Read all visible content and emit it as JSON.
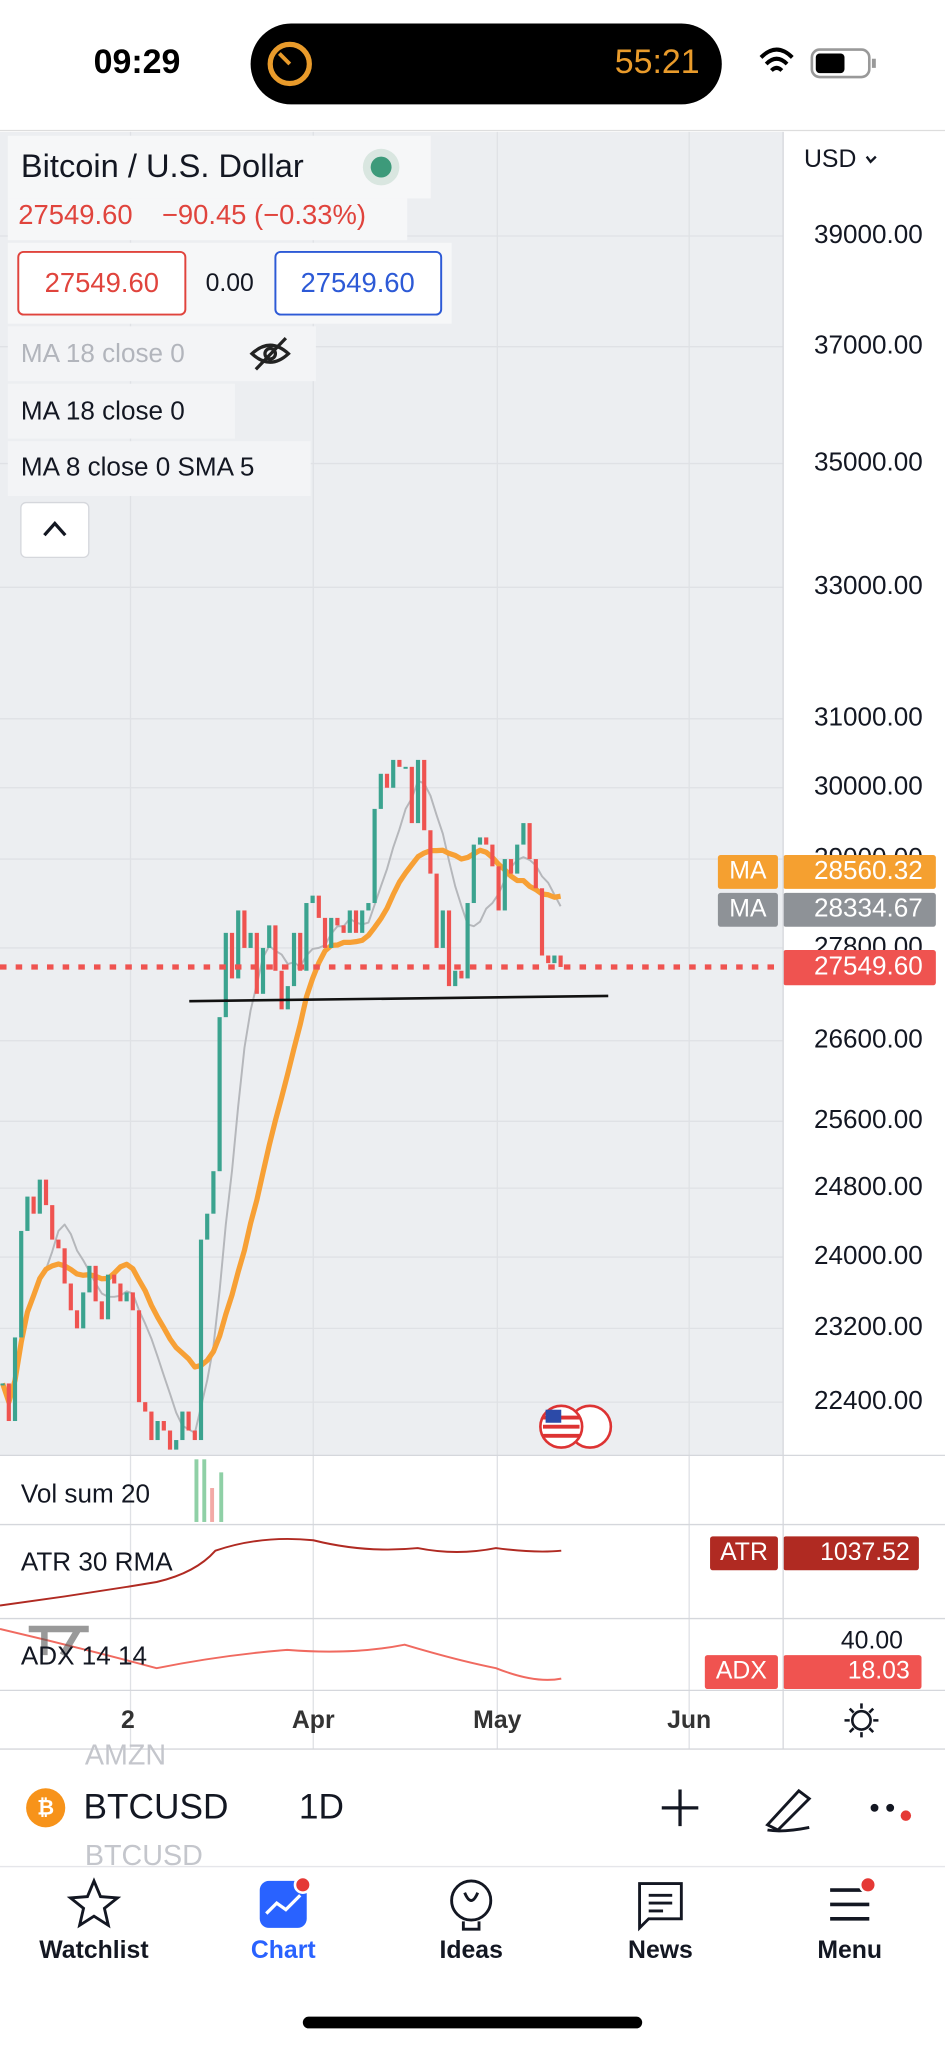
{
  "status_bar": {
    "time": "09:29",
    "timer": "55:21"
  },
  "header": {
    "symbol_title": "Bitcoin / U.S. Dollar",
    "price": "27549.60",
    "change": "−90.45 (−0.33%)",
    "bid": "27549.60",
    "spread": "0.00",
    "ask": "27549.60"
  },
  "indicators": [
    "MA 18 close 0",
    "MA 18 close 0",
    "MA 8 close 0 SMA 5"
  ],
  "chart_data": {
    "type": "candlestick",
    "currency": "USD",
    "log_scale": true,
    "close": [
      22600,
      22200,
      23100,
      24300,
      24700,
      24500,
      24900,
      24600,
      24200,
      24100,
      23700,
      23400,
      23200,
      23600,
      23900,
      23500,
      23300,
      23800,
      23700,
      23500,
      23600,
      23400,
      22400,
      22300,
      22000,
      22200,
      22100,
      21900,
      22000,
      22300,
      22100,
      22000,
      24200,
      24500,
      25000,
      26900,
      28000,
      27400,
      28300,
      27800,
      28000,
      27200,
      27800,
      28100,
      27500,
      27000,
      27300,
      28000,
      27500,
      28400,
      28500,
      28200,
      27800,
      28200,
      28100,
      28000,
      28300,
      28000,
      28300,
      28400,
      29700,
      30200,
      30000,
      30400,
      30300,
      30300,
      29500,
      30400,
      29400,
      28800,
      27800,
      28300,
      27300,
      27500,
      27400,
      28400,
      29200,
      29300,
      29200,
      28900,
      28300,
      29000,
      28800,
      29200,
      29500,
      29000,
      28600,
      27700,
      27600,
      27700,
      27549.6
    ],
    "up_color": "#3ba38f",
    "down_color": "#ef5350",
    "ylim": [
      21840,
      40980
    ],
    "yticks": [
      {
        "value": 39000,
        "label": "39000.00"
      },
      {
        "value": 37000,
        "label": "37000.00"
      },
      {
        "value": 35000,
        "label": "35000.00"
      },
      {
        "value": 33000,
        "label": "33000.00"
      },
      {
        "value": 31000,
        "label": "31000.00"
      },
      {
        "value": 30000,
        "label": "30000.00"
      },
      {
        "value": 29000,
        "label": "29000.00"
      },
      {
        "value": 27800,
        "label": "27800.00"
      },
      {
        "value": 26600,
        "label": "26600.00"
      },
      {
        "value": 25600,
        "label": "25600.00"
      },
      {
        "value": 24800,
        "label": "24800.00"
      },
      {
        "value": 24000,
        "label": "24000.00"
      },
      {
        "value": 23200,
        "label": "23200.00"
      },
      {
        "value": 22400,
        "label": "22400.00"
      }
    ],
    "price_markers": [
      {
        "name": "MA",
        "value": 28560.32,
        "color": "#f5a030"
      },
      {
        "name": "MA",
        "value": 28334.67,
        "color": "#8e9297"
      }
    ],
    "last_price": {
      "value": 27549.6,
      "label": "27549.60",
      "color": "#ef5350"
    },
    "xtick_labels": [
      "2",
      "Apr",
      "May",
      "Jun"
    ]
  },
  "panes": {
    "volume": "Vol sum 20",
    "atr": {
      "label": "ATR 30 RMA",
      "tag": "ATR",
      "value": 1037.52
    },
    "adx": {
      "label": "ADX 14 14",
      "level": "40.00",
      "tag": "ADX",
      "value": 18.03
    }
  },
  "toolbar": {
    "symbol": "BTCUSD",
    "interval": "1D",
    "faded_above": "AMZN",
    "faded_below": "BTCUSD"
  },
  "nav": [
    "Watchlist",
    "Chart",
    "Ideas",
    "News",
    "Menu"
  ]
}
